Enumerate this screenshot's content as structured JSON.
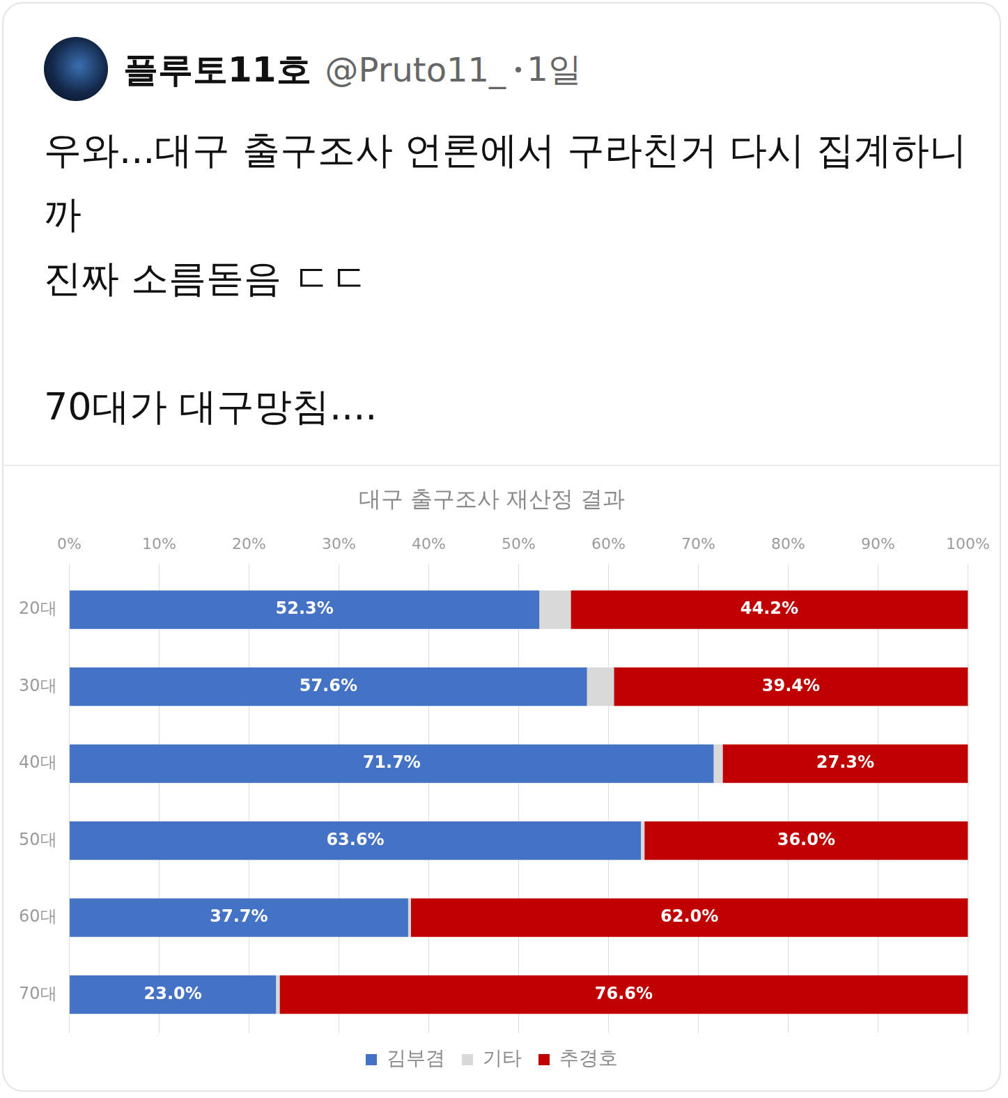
{
  "post": {
    "author": "플루토11호",
    "handle": "@Pruto11_",
    "time": "1일",
    "paragraphs": [
      [
        "우와...대구 출구조사 언론에서 구라친거 다시 집계하니까",
        "진짜 소름돋음 ㄷㄷ"
      ],
      [
        "70대가 대구망침...."
      ]
    ]
  },
  "chart_data": {
    "type": "bar",
    "orientation": "horizontal",
    "stacked": true,
    "title": "대구 출구조사 재산정 결과",
    "categories": [
      "20대",
      "30대",
      "40대",
      "50대",
      "60대",
      "70대"
    ],
    "series": [
      {
        "name": "김부겸",
        "color": "#4472c4",
        "values": [
          52.3,
          57.6,
          71.7,
          63.6,
          37.7,
          23.0
        ],
        "value_labels": [
          "52.3%",
          "57.6%",
          "71.7%",
          "63.6%",
          "37.7%",
          "23.0%"
        ]
      },
      {
        "name": "기타",
        "color": "#d9d9d9",
        "values": [
          3.5,
          3.0,
          1.0,
          0.4,
          0.3,
          0.4
        ],
        "data_labels": false
      },
      {
        "name": "추경호",
        "color": "#c00000",
        "values": [
          44.2,
          39.4,
          27.3,
          36.0,
          62.0,
          76.6
        ],
        "value_labels": [
          "44.2%",
          "39.4%",
          "27.3%",
          "36.0%",
          "62.0%",
          "76.6%"
        ]
      }
    ],
    "xlim": [
      0,
      100
    ],
    "xticks": [
      {
        "value": 0,
        "label": "0%"
      },
      {
        "value": 10,
        "label": "10%"
      },
      {
        "value": 20,
        "label": "20%"
      },
      {
        "value": 30,
        "label": "30%"
      },
      {
        "value": 40,
        "label": "40%"
      },
      {
        "value": 50,
        "label": "50%"
      },
      {
        "value": 60,
        "label": "60%"
      },
      {
        "value": 70,
        "label": "70%"
      },
      {
        "value": 80,
        "label": "80%"
      },
      {
        "value": 90,
        "label": "90%"
      },
      {
        "value": 100,
        "label": "100%"
      }
    ],
    "grid": true,
    "legend": "bottom",
    "data_labels": true
  }
}
